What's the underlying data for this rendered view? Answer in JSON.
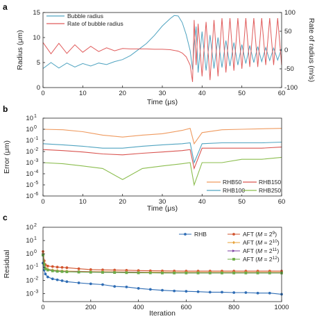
{
  "chart_data": [
    {
      "panel": "a",
      "type": "line",
      "xlabel": "Time (μs)",
      "ylabel_left": "Radius (μm)",
      "ylabel_right": "Rate of radius (m/s)",
      "xlim": [
        0,
        60
      ],
      "ylim_left": [
        0,
        15
      ],
      "ylim_right": [
        -100,
        100
      ],
      "xticks": [
        "0",
        "10",
        "20",
        "30",
        "40",
        "50",
        "60"
      ],
      "yticks_left": [
        "0",
        "5",
        "10",
        "15"
      ],
      "yticks_right": [
        "-100",
        "-50",
        "0",
        "50",
        "100"
      ],
      "legend_position": "top-left",
      "series": [
        {
          "name": "Bubble radius",
          "color": "#4fa3c0",
          "axis": "left",
          "x": [
            0,
            2,
            4,
            6,
            8,
            10,
            12,
            14,
            16,
            18,
            20,
            22,
            24,
            26,
            28,
            30,
            32,
            33,
            34,
            35,
            36,
            37,
            37.6,
            38,
            38.5,
            39,
            40,
            41,
            42,
            43,
            44,
            45,
            46,
            47,
            48,
            49,
            50,
            51,
            52,
            53,
            54,
            55,
            56,
            57,
            58,
            59,
            60
          ],
          "y": [
            3.8,
            5.0,
            3.9,
            4.9,
            4.1,
            4.8,
            4.3,
            4.9,
            4.6,
            5.2,
            5.6,
            6.4,
            7.6,
            8.8,
            10.4,
            12.3,
            13.8,
            14.4,
            14.3,
            13.0,
            10.6,
            7.4,
            3.6,
            8.5,
            12.2,
            3.0,
            11.2,
            3.4,
            10.5,
            3.8,
            10.0,
            4.0,
            9.4,
            4.3,
            9.0,
            4.5,
            8.6,
            4.8,
            8.4,
            5.0,
            8.2,
            5.2,
            8.0,
            5.4,
            7.9,
            5.5,
            7.8
          ]
        },
        {
          "name": "Rate of bubble radius",
          "color": "#e05a5a",
          "axis": "right",
          "x": [
            0,
            2,
            4,
            6,
            8,
            10,
            12,
            14,
            16,
            18,
            20,
            22,
            24,
            26,
            28,
            30,
            32,
            34,
            35,
            36,
            37,
            37.6,
            38,
            38.5,
            39,
            40,
            41,
            42,
            43,
            44,
            45,
            46,
            47,
            48,
            49,
            50,
            51,
            52,
            53,
            54,
            55,
            56,
            57,
            58,
            59,
            60
          ],
          "y": [
            20,
            -10,
            18,
            -9,
            14,
            -6,
            10,
            -4,
            6,
            -2,
            4,
            3,
            3,
            3,
            2,
            2,
            1,
            -3,
            -8,
            -18,
            -40,
            -85,
            80,
            -40,
            70,
            -70,
            75,
            -80,
            80,
            -70,
            85,
            -60,
            85,
            -55,
            85,
            -50,
            85,
            -45,
            85,
            -45,
            85,
            -40,
            85,
            -40,
            85,
            -40
          ]
        }
      ]
    },
    {
      "panel": "b",
      "type": "line",
      "xlabel": "Time (μs)",
      "ylabel": "Error (μm)",
      "xlim": [
        0,
        60
      ],
      "ylim": [
        1e-06,
        10
      ],
      "yscale": "log",
      "xticks": [
        "0",
        "10",
        "20",
        "30",
        "40",
        "50",
        "60"
      ],
      "yticks": [
        "10",
        "10",
        "10",
        "10",
        "10",
        "10",
        "10",
        "10"
      ],
      "ytick_exponents": [
        "1",
        "0",
        "-1",
        "-2",
        "-3",
        "-4",
        "-5",
        "-6"
      ],
      "legend_position": "bottom-right",
      "series": [
        {
          "name": "RHB50",
          "color": "#ef9a5f",
          "x": [
            0,
            5,
            10,
            15,
            20,
            25,
            30,
            35,
            37,
            38,
            40,
            45,
            50,
            55,
            60
          ],
          "y": [
            1.0,
            0.9,
            0.6,
            0.3,
            0.2,
            0.3,
            0.4,
            0.8,
            1.2,
            0.05,
            0.5,
            0.9,
            1.0,
            1.1,
            1.2
          ]
        },
        {
          "name": "RHB100",
          "color": "#4fa3c0",
          "x": [
            0,
            5,
            10,
            15,
            20,
            25,
            30,
            35,
            37,
            38,
            40,
            45,
            50,
            55,
            60
          ],
          "y": [
            0.05,
            0.04,
            0.03,
            0.02,
            0.02,
            0.03,
            0.04,
            0.05,
            0.06,
            0.001,
            0.05,
            0.06,
            0.06,
            0.06,
            0.07
          ]
        },
        {
          "name": "RHB150",
          "color": "#d9534f",
          "x": [
            0,
            5,
            10,
            15,
            20,
            25,
            30,
            35,
            37,
            38,
            40,
            45,
            50,
            55,
            60
          ],
          "y": [
            0.015,
            0.012,
            0.009,
            0.006,
            0.005,
            0.007,
            0.009,
            0.012,
            0.015,
            0.0003,
            0.02,
            0.02,
            0.02,
            0.02,
            0.025
          ]
        },
        {
          "name": "RHB250",
          "color": "#8bbd4e",
          "x": [
            0,
            5,
            10,
            15,
            20,
            25,
            30,
            35,
            37,
            38,
            40,
            45,
            50,
            55,
            60
          ],
          "y": [
            0.001,
            0.0008,
            0.0005,
            0.0003,
            3e-05,
            0.0003,
            0.0005,
            0.0008,
            0.001,
            1e-05,
            0.001,
            0.001,
            0.002,
            0.002,
            0.003
          ]
        }
      ]
    },
    {
      "panel": "c",
      "type": "line",
      "xlabel": "Iteration",
      "ylabel": "Residual",
      "xlim": [
        0,
        1000
      ],
      "ylim": [
        0.0001,
        100
      ],
      "yscale": "log",
      "xticks": [
        "0",
        "200",
        "400",
        "600",
        "800",
        "1000"
      ],
      "yticks": [
        "10",
        "10",
        "10",
        "10",
        "10",
        "10"
      ],
      "ytick_exponents": [
        "2",
        "1",
        "0",
        "-1",
        "-2",
        "-3"
      ],
      "legend_position": "top-right",
      "series": [
        {
          "name": "RHB",
          "color": "#2f6db5",
          "marker": "circle",
          "x": [
            0,
            5,
            10,
            20,
            40,
            60,
            80,
            100,
            150,
            200,
            250,
            300,
            350,
            400,
            450,
            500,
            550,
            600,
            650,
            700,
            750,
            800,
            850,
            900,
            950,
            1000
          ],
          "y": [
            0.2,
            0.06,
            0.03,
            0.018,
            0.013,
            0.011,
            0.0095,
            0.008,
            0.0065,
            0.0055,
            0.0048,
            0.0035,
            0.0032,
            0.0025,
            0.0021,
            0.0018,
            0.0016,
            0.0015,
            0.0014,
            0.0013,
            0.0013,
            0.0012,
            0.0012,
            0.0011,
            0.0011,
            0.0009
          ]
        },
        {
          "name": "AFT (M = 2^9)",
          "label_main": "AFT (",
          "label_var": "M",
          "label_eq": " = 2",
          "label_exp": "9",
          "label_end": ")",
          "color": "#d2542f",
          "marker": "circle",
          "x": [
            0,
            5,
            10,
            20,
            40,
            60,
            80,
            100,
            150,
            200,
            250,
            300,
            350,
            400,
            450,
            500,
            550,
            600,
            650,
            700,
            750,
            800,
            850,
            900,
            950,
            1000
          ],
          "y": [
            1.5,
            0.3,
            0.15,
            0.12,
            0.11,
            0.1,
            0.095,
            0.09,
            0.075,
            0.065,
            0.062,
            0.06,
            0.058,
            0.055,
            0.053,
            0.052,
            0.051,
            0.05,
            0.05,
            0.05,
            0.05,
            0.05,
            0.05,
            0.05,
            0.05,
            0.05
          ]
        },
        {
          "name": "AFT (M = 2^10)",
          "label_main": "AFT (",
          "label_var": "M",
          "label_eq": " = 2",
          "label_exp": "10",
          "label_end": ")",
          "color": "#e8a33a",
          "marker": "diamond",
          "x": [
            0,
            5,
            10,
            20,
            40,
            60,
            80,
            100,
            150,
            200,
            250,
            300,
            350,
            400,
            450,
            500,
            550,
            600,
            650,
            700,
            750,
            800,
            850,
            900,
            950,
            1000
          ],
          "y": [
            1.0,
            0.2,
            0.09,
            0.07,
            0.06,
            0.055,
            0.052,
            0.05,
            0.048,
            0.046,
            0.045,
            0.044,
            0.043,
            0.042,
            0.041,
            0.041,
            0.04,
            0.04,
            0.04,
            0.04,
            0.04,
            0.04,
            0.04,
            0.04,
            0.04,
            0.04
          ]
        },
        {
          "name": "AFT (M = 2^11)",
          "label_main": "AFT (",
          "label_var": "M",
          "label_eq": " = 2",
          "label_exp": "11",
          "label_end": ")",
          "color": "#7b3fa0",
          "marker": "triangle",
          "x": [
            0,
            5,
            10,
            20,
            40,
            60,
            80,
            100,
            150,
            200,
            250,
            300,
            350,
            400,
            450,
            500,
            550,
            600,
            650,
            700,
            750,
            800,
            850,
            900,
            950,
            1000
          ],
          "y": [
            0.9,
            0.18,
            0.08,
            0.065,
            0.055,
            0.05,
            0.048,
            0.046,
            0.044,
            0.043,
            0.042,
            0.041,
            0.04,
            0.039,
            0.038,
            0.038,
            0.037,
            0.037,
            0.037,
            0.037,
            0.037,
            0.037,
            0.037,
            0.037,
            0.037,
            0.037
          ]
        },
        {
          "name": "AFT (M = 2^12)",
          "label_main": "AFT (",
          "label_var": "M",
          "label_eq": " = 2",
          "label_exp": "12",
          "label_end": ")",
          "color": "#6bab46",
          "marker": "square",
          "x": [
            0,
            5,
            10,
            20,
            40,
            60,
            80,
            100,
            150,
            200,
            250,
            300,
            350,
            400,
            450,
            500,
            550,
            600,
            650,
            700,
            750,
            800,
            850,
            900,
            950,
            1000
          ],
          "y": [
            0.8,
            0.16,
            0.075,
            0.06,
            0.052,
            0.048,
            0.046,
            0.044,
            0.042,
            0.041,
            0.04,
            0.039,
            0.038,
            0.037,
            0.037,
            0.036,
            0.036,
            0.036,
            0.036,
            0.036,
            0.036,
            0.036,
            0.036,
            0.036,
            0.036,
            0.036
          ]
        }
      ]
    }
  ],
  "panel_letters": [
    "a",
    "b",
    "c"
  ]
}
